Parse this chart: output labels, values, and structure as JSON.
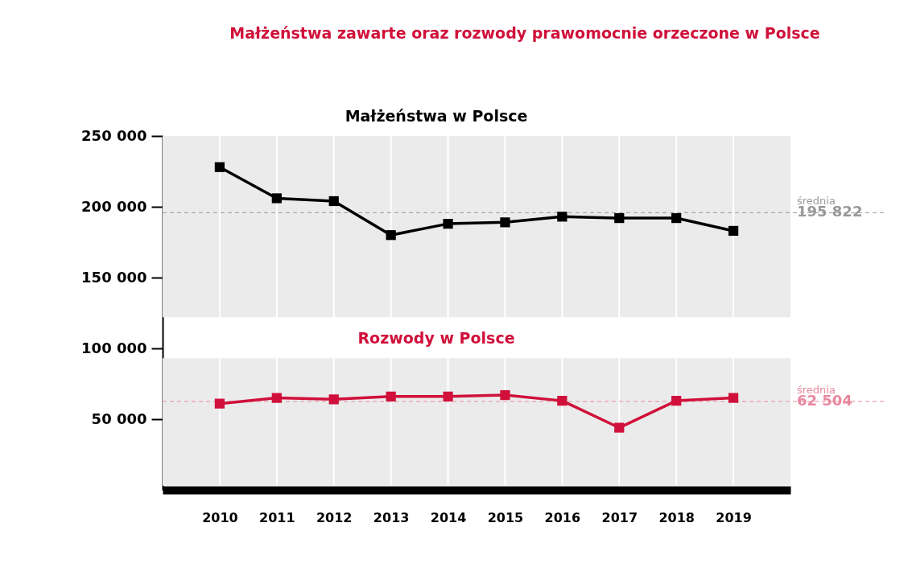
{
  "chart_data": {
    "type": "line",
    "title": "Małżeństwa zawarte oraz rozwody prawomocnie orzeczone w Polsce",
    "categories": [
      "2010",
      "2011",
      "2012",
      "2013",
      "2014",
      "2015",
      "2016",
      "2017",
      "2018",
      "2019"
    ],
    "series": [
      {
        "color": "#000000",
        "values": [
          228000,
          206000,
          204000,
          180000,
          188000,
          189000,
          193000,
          192000,
          192000,
          183000
        ]
      },
      {
        "color": "#d0103a",
        "values": [
          61000,
          65000,
          64000,
          66000,
          66000,
          67000,
          63000,
          44000,
          63000,
          65000
        ]
      }
    ],
    "ylim": [
      0,
      250000
    ],
    "yticks": [
      {
        "value": 50000,
        "label": "50 000"
      },
      {
        "value": 100000,
        "label": "100 000"
      },
      {
        "value": 150000,
        "label": "150 000"
      },
      {
        "value": 200000,
        "label": "200 000"
      },
      {
        "value": 250000,
        "label": "250 000"
      }
    ],
    "bands": [
      {
        "axis": "y",
        "from": 122000,
        "to": 250000,
        "label": "Małżeństwa w Polsce",
        "color": "#ebebeb"
      },
      {
        "axis": "y",
        "from": 3000,
        "to": 93000,
        "label": "Rozwody w Polsce",
        "color": "#ebebeb"
      }
    ],
    "ref_lines": [
      {
        "axis": "y",
        "value": 195822,
        "label": "średnia 195 822",
        "color": "#999999",
        "line_style": "dashed"
      },
      {
        "axis": "y",
        "value": 62504,
        "label": "średnia 62 504",
        "color": "#e8889f",
        "line_style": "dashed"
      }
    ],
    "grid": "x",
    "marker": "square"
  }
}
